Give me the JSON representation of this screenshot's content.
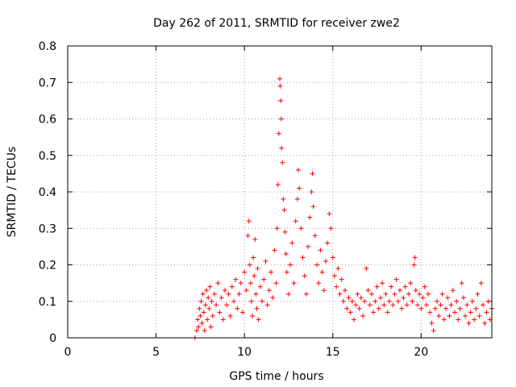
{
  "chart_data": {
    "type": "scatter",
    "title": "Day 262 of 2011, SRMTID for receiver zwe2",
    "xlabel": "GPS time / hours",
    "ylabel": "SRMTID / TECUs",
    "xlim": [
      0,
      24
    ],
    "ylim": [
      0,
      0.8
    ],
    "xticks": [
      0,
      5,
      10,
      15,
      20
    ],
    "xtick_labels": [
      "0",
      "5",
      "10",
      "15",
      "20"
    ],
    "yticks": [
      0,
      0.1,
      0.2,
      0.3,
      0.4,
      0.5,
      0.6,
      0.7,
      0.8
    ],
    "ytick_labels": [
      "0",
      "0.1",
      "0.2",
      "0.3",
      "0.4",
      "0.5",
      "0.6",
      "0.7",
      "0.8"
    ],
    "grid": true,
    "marker": "+",
    "color": "#ff0000",
    "series": [
      {
        "name": "SRMTID",
        "points": [
          [
            7.2,
            0.0
          ],
          [
            7.3,
            0.02
          ],
          [
            7.35,
            0.05
          ],
          [
            7.4,
            0.03
          ],
          [
            7.45,
            0.08
          ],
          [
            7.5,
            0.06
          ],
          [
            7.55,
            0.1
          ],
          [
            7.6,
            0.04
          ],
          [
            7.65,
            0.12
          ],
          [
            7.7,
            0.07
          ],
          [
            7.75,
            0.02
          ],
          [
            7.8,
            0.09
          ],
          [
            7.85,
            0.13
          ],
          [
            7.9,
            0.05
          ],
          [
            7.95,
            0.11
          ],
          [
            8.0,
            0.08
          ],
          [
            8.05,
            0.14
          ],
          [
            8.1,
            0.03
          ],
          [
            8.15,
            0.1
          ],
          [
            8.2,
            0.06
          ],
          [
            8.3,
            0.12
          ],
          [
            8.4,
            0.09
          ],
          [
            8.5,
            0.15
          ],
          [
            8.6,
            0.07
          ],
          [
            8.7,
            0.11
          ],
          [
            8.8,
            0.05
          ],
          [
            8.9,
            0.13
          ],
          [
            9.0,
            0.09
          ],
          [
            9.1,
            0.12
          ],
          [
            9.2,
            0.06
          ],
          [
            9.3,
            0.14
          ],
          [
            9.4,
            0.1
          ],
          [
            9.5,
            0.16
          ],
          [
            9.6,
            0.08
          ],
          [
            9.7,
            0.12
          ],
          [
            9.8,
            0.15
          ],
          [
            9.9,
            0.07
          ],
          [
            10.0,
            0.18
          ],
          [
            10.1,
            0.13
          ],
          [
            10.2,
            0.28
          ],
          [
            10.25,
            0.32
          ],
          [
            10.3,
            0.2
          ],
          [
            10.35,
            0.15
          ],
          [
            10.4,
            0.1
          ],
          [
            10.45,
            0.06
          ],
          [
            10.5,
            0.22
          ],
          [
            10.55,
            0.17
          ],
          [
            10.6,
            0.27
          ],
          [
            10.65,
            0.12
          ],
          [
            10.7,
            0.08
          ],
          [
            10.75,
            0.19
          ],
          [
            10.8,
            0.05
          ],
          [
            10.9,
            0.14
          ],
          [
            11.0,
            0.1
          ],
          [
            11.1,
            0.16
          ],
          [
            11.2,
            0.21
          ],
          [
            11.3,
            0.09
          ],
          [
            11.4,
            0.13
          ],
          [
            11.5,
            0.18
          ],
          [
            11.6,
            0.11
          ],
          [
            11.7,
            0.24
          ],
          [
            11.8,
            0.15
          ],
          [
            11.85,
            0.3
          ],
          [
            11.9,
            0.42
          ],
          [
            11.95,
            0.56
          ],
          [
            12.0,
            0.71
          ],
          [
            12.02,
            0.69
          ],
          [
            12.05,
            0.65
          ],
          [
            12.08,
            0.6
          ],
          [
            12.1,
            0.52
          ],
          [
            12.15,
            0.48
          ],
          [
            12.2,
            0.38
          ],
          [
            12.25,
            0.35
          ],
          [
            12.3,
            0.29
          ],
          [
            12.35,
            0.23
          ],
          [
            12.4,
            0.18
          ],
          [
            12.5,
            0.12
          ],
          [
            12.6,
            0.2
          ],
          [
            12.7,
            0.26
          ],
          [
            12.8,
            0.15
          ],
          [
            12.9,
            0.32
          ],
          [
            13.0,
            0.38
          ],
          [
            13.05,
            0.46
          ],
          [
            13.1,
            0.41
          ],
          [
            13.2,
            0.3
          ],
          [
            13.3,
            0.22
          ],
          [
            13.4,
            0.17
          ],
          [
            13.5,
            0.12
          ],
          [
            13.6,
            0.25
          ],
          [
            13.7,
            0.33
          ],
          [
            13.8,
            0.4
          ],
          [
            13.85,
            0.45
          ],
          [
            13.9,
            0.36
          ],
          [
            14.0,
            0.28
          ],
          [
            14.1,
            0.2
          ],
          [
            14.2,
            0.15
          ],
          [
            14.3,
            0.24
          ],
          [
            14.4,
            0.18
          ],
          [
            14.5,
            0.13
          ],
          [
            14.6,
            0.21
          ],
          [
            14.7,
            0.26
          ],
          [
            14.8,
            0.34
          ],
          [
            14.9,
            0.3
          ],
          [
            15.0,
            0.22
          ],
          [
            15.1,
            0.17
          ],
          [
            15.2,
            0.14
          ],
          [
            15.3,
            0.19
          ],
          [
            15.4,
            0.12
          ],
          [
            15.5,
            0.16
          ],
          [
            15.6,
            0.1
          ],
          [
            15.7,
            0.13
          ],
          [
            15.8,
            0.08
          ],
          [
            15.9,
            0.11
          ],
          [
            16.0,
            0.07
          ],
          [
            16.1,
            0.1
          ],
          [
            16.2,
            0.05
          ],
          [
            16.3,
            0.09
          ],
          [
            16.4,
            0.12
          ],
          [
            16.5,
            0.08
          ],
          [
            16.6,
            0.11
          ],
          [
            16.7,
            0.06
          ],
          [
            16.8,
            0.1
          ],
          [
            16.9,
            0.19
          ],
          [
            17.0,
            0.13
          ],
          [
            17.1,
            0.09
          ],
          [
            17.2,
            0.12
          ],
          [
            17.3,
            0.07
          ],
          [
            17.4,
            0.1
          ],
          [
            17.5,
            0.14
          ],
          [
            17.6,
            0.08
          ],
          [
            17.7,
            0.11
          ],
          [
            17.8,
            0.15
          ],
          [
            17.9,
            0.09
          ],
          [
            18.0,
            0.12
          ],
          [
            18.1,
            0.07
          ],
          [
            18.2,
            0.1
          ],
          [
            18.3,
            0.14
          ],
          [
            18.4,
            0.09
          ],
          [
            18.5,
            0.12
          ],
          [
            18.6,
            0.16
          ],
          [
            18.7,
            0.1
          ],
          [
            18.8,
            0.13
          ],
          [
            18.9,
            0.08
          ],
          [
            19.0,
            0.11
          ],
          [
            19.1,
            0.14
          ],
          [
            19.2,
            0.09
          ],
          [
            19.3,
            0.12
          ],
          [
            19.4,
            0.15
          ],
          [
            19.5,
            0.1
          ],
          [
            19.6,
            0.2
          ],
          [
            19.65,
            0.22
          ],
          [
            19.7,
            0.13
          ],
          [
            19.8,
            0.09
          ],
          [
            19.9,
            0.12
          ],
          [
            20.0,
            0.08
          ],
          [
            20.1,
            0.11
          ],
          [
            20.2,
            0.14
          ],
          [
            20.3,
            0.09
          ],
          [
            20.4,
            0.12
          ],
          [
            20.5,
            0.07
          ],
          [
            20.6,
            0.04
          ],
          [
            20.7,
            0.02
          ],
          [
            20.8,
            0.08
          ],
          [
            20.9,
            0.1
          ],
          [
            21.0,
            0.06
          ],
          [
            21.1,
            0.09
          ],
          [
            21.2,
            0.12
          ],
          [
            21.3,
            0.05
          ],
          [
            21.4,
            0.08
          ],
          [
            21.5,
            0.11
          ],
          [
            21.6,
            0.06
          ],
          [
            21.7,
            0.09
          ],
          [
            21.8,
            0.13
          ],
          [
            21.9,
            0.07
          ],
          [
            22.0,
            0.1
          ],
          [
            22.1,
            0.05
          ],
          [
            22.2,
            0.08
          ],
          [
            22.3,
            0.15
          ],
          [
            22.4,
            0.11
          ],
          [
            22.5,
            0.06
          ],
          [
            22.6,
            0.09
          ],
          [
            22.7,
            0.04
          ],
          [
            22.8,
            0.07
          ],
          [
            22.9,
            0.1
          ],
          [
            23.0,
            0.05
          ],
          [
            23.1,
            0.08
          ],
          [
            23.2,
            0.12
          ],
          [
            23.3,
            0.06
          ],
          [
            23.4,
            0.15
          ],
          [
            23.5,
            0.09
          ],
          [
            23.6,
            0.04
          ],
          [
            23.7,
            0.07
          ],
          [
            23.8,
            0.1
          ],
          [
            23.9,
            0.05
          ],
          [
            24.0,
            0.08
          ]
        ]
      }
    ]
  }
}
